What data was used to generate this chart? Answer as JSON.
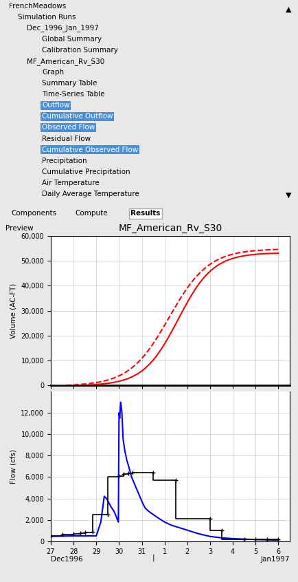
{
  "title": "MF_American_Rv_S30",
  "ylabel_top": "Volume (AC-FT)",
  "ylabel_bottom": "Flow (cfs)",
  "top_yticks": [
    0,
    10000,
    20000,
    30000,
    40000,
    50000,
    60000
  ],
  "bottom_yticks": [
    0,
    2000,
    4000,
    6000,
    8000,
    10000,
    12000
  ],
  "xtick_labels": [
    "27",
    "28",
    "29",
    "30",
    "31",
    "1",
    "2",
    "3",
    "4",
    "5",
    "6"
  ],
  "xlabel_left": "Dec1996",
  "xlabel_right": "Jan1997",
  "background_color": "#e8e8e8",
  "plot_bg": "#ffffff",
  "grid_color": "#cccccc",
  "highlight_color": "#4a90d9",
  "tree_items": [
    {
      "text": "FrenchMeadows",
      "indent": 0.03,
      "highlight": false
    },
    {
      "text": "Simulation Runs",
      "indent": 0.06,
      "highlight": false
    },
    {
      "text": "Dec_1996_Jan_1997",
      "indent": 0.09,
      "highlight": false
    },
    {
      "text": "Global Summary",
      "indent": 0.14,
      "highlight": false
    },
    {
      "text": "Calibration Summary",
      "indent": 0.14,
      "highlight": false
    },
    {
      "text": "MF_American_Rv_S30",
      "indent": 0.09,
      "highlight": false
    },
    {
      "text": "Graph",
      "indent": 0.14,
      "highlight": false
    },
    {
      "text": "Summary Table",
      "indent": 0.14,
      "highlight": false
    },
    {
      "text": "Time-Series Table",
      "indent": 0.14,
      "highlight": false
    },
    {
      "text": "Outflow",
      "indent": 0.14,
      "highlight": true
    },
    {
      "text": "Cumulative Outflow",
      "indent": 0.14,
      "highlight": true
    },
    {
      "text": "Observed Flow",
      "indent": 0.14,
      "highlight": true
    },
    {
      "text": "Residual Flow",
      "indent": 0.14,
      "highlight": false
    },
    {
      "text": "Cumulative Observed Flow",
      "indent": 0.14,
      "highlight": true
    },
    {
      "text": "Precipitation",
      "indent": 0.14,
      "highlight": false
    },
    {
      "text": "Cumulative Precipitation",
      "indent": 0.14,
      "highlight": false
    },
    {
      "text": "Air Temperature",
      "indent": 0.14,
      "highlight": false
    },
    {
      "text": "Daily Average Temperature",
      "indent": 0.14,
      "highlight": false
    }
  ],
  "tabs": [
    "Components",
    "Compute",
    "Results"
  ],
  "active_tab": "Results"
}
